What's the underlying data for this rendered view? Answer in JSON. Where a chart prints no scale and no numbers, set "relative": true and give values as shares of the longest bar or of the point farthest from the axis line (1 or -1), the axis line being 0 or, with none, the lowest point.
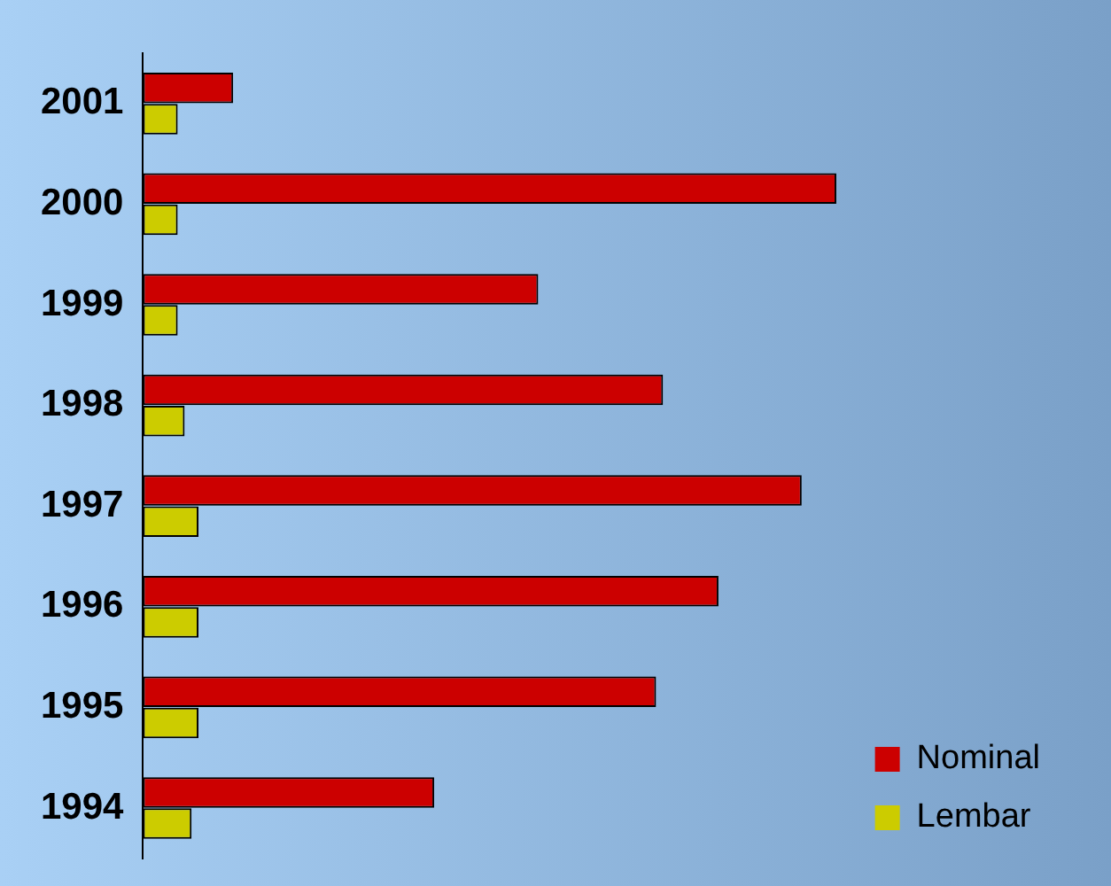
{
  "chart_data": {
    "type": "bar",
    "orientation": "horizontal",
    "relative": true,
    "categories": [
      "2001",
      "2000",
      "1999",
      "1998",
      "1997",
      "1996",
      "1995",
      "1994"
    ],
    "series": [
      {
        "name": "Nominal",
        "color": "#cc0000",
        "values": [
          0.13,
          1,
          0.57,
          0.75,
          0.95,
          0.83,
          0.74,
          0.42
        ]
      },
      {
        "name": "Lembar",
        "color": "#cccc00",
        "values": [
          0.05,
          0.05,
          0.05,
          0.06,
          0.08,
          0.08,
          0.08,
          0.07
        ]
      }
    ],
    "legend": "bottom right"
  }
}
